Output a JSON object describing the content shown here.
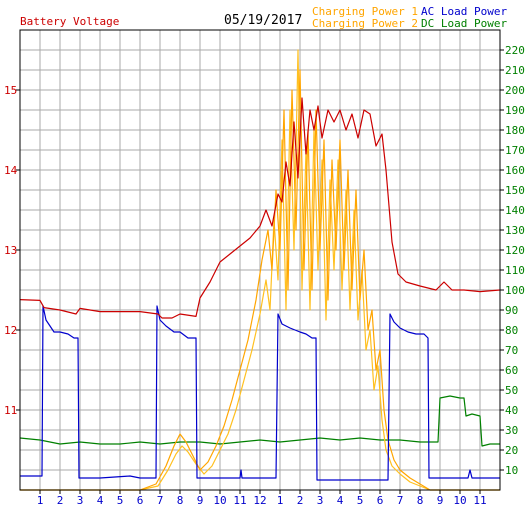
{
  "header": {
    "left_label": "Battery Voltage",
    "date": "05/19/2017",
    "legend": [
      {
        "label": "Charging Power 1",
        "color": "#ffa500"
      },
      {
        "label": "AC Load Power",
        "color": "#0000cc"
      },
      {
        "label": "Charging Power 2",
        "color": "#ffa500"
      },
      {
        "label": "DC Load Power",
        "color": "#008000"
      }
    ]
  },
  "colors": {
    "voltage": "#cc0000",
    "charge1": "#ffa500",
    "charge2": "#ffc020",
    "ac": "#0000cc",
    "dc": "#008000",
    "grid": "#aaaaaa",
    "frame": "#000000"
  },
  "chart_data": {
    "type": "line",
    "x_unit": "hour of day (0-24)",
    "xlim": [
      0,
      24
    ],
    "x_ticks": [
      {
        "x": 1,
        "label": "1"
      },
      {
        "x": 2,
        "label": "2"
      },
      {
        "x": 3,
        "label": "3"
      },
      {
        "x": 4,
        "label": "4"
      },
      {
        "x": 5,
        "label": "5"
      },
      {
        "x": 6,
        "label": "6"
      },
      {
        "x": 7,
        "label": "7"
      },
      {
        "x": 8,
        "label": "8"
      },
      {
        "x": 9,
        "label": "9"
      },
      {
        "x": 10,
        "label": "10"
      },
      {
        "x": 11,
        "label": "11"
      },
      {
        "x": 12,
        "label": "12"
      },
      {
        "x": 13,
        "label": "1"
      },
      {
        "x": 14,
        "label": "2"
      },
      {
        "x": 15,
        "label": "3"
      },
      {
        "x": 16,
        "label": "4"
      },
      {
        "x": 17,
        "label": "5"
      },
      {
        "x": 18,
        "label": "6"
      },
      {
        "x": 19,
        "label": "7"
      },
      {
        "x": 20,
        "label": "8"
      },
      {
        "x": 21,
        "label": "9"
      },
      {
        "x": 22,
        "label": "10"
      },
      {
        "x": 23,
        "label": "11"
      }
    ],
    "y_left": {
      "ylim": [
        10,
        15.75
      ],
      "ticks": [
        11,
        12,
        13,
        14,
        15
      ]
    },
    "y_right": {
      "ylim": [
        0,
        230
      ],
      "ticks": [
        10,
        20,
        30,
        40,
        50,
        60,
        70,
        80,
        90,
        100,
        110,
        120,
        130,
        140,
        150,
        160,
        170,
        180,
        190,
        200,
        210,
        220
      ]
    },
    "series": [
      {
        "name": "Battery Voltage",
        "axis": "left",
        "color": "#cc0000",
        "points": [
          [
            0,
            12.38
          ],
          [
            1,
            12.37
          ],
          [
            1.2,
            12.28
          ],
          [
            2,
            12.25
          ],
          [
            2.8,
            12.2
          ],
          [
            3,
            12.27
          ],
          [
            4,
            12.23
          ],
          [
            6,
            12.23
          ],
          [
            6.9,
            12.2
          ],
          [
            7.1,
            12.15
          ],
          [
            7.6,
            12.15
          ],
          [
            8,
            12.2
          ],
          [
            8.8,
            12.17
          ],
          [
            9,
            12.4
          ],
          [
            9.5,
            12.6
          ],
          [
            10,
            12.85
          ],
          [
            10.5,
            12.95
          ],
          [
            11,
            13.05
          ],
          [
            11.5,
            13.15
          ],
          [
            12,
            13.3
          ],
          [
            12.3,
            13.5
          ],
          [
            12.6,
            13.3
          ],
          [
            12.9,
            13.7
          ],
          [
            13.1,
            13.6
          ],
          [
            13.3,
            14.1
          ],
          [
            13.5,
            13.8
          ],
          [
            13.7,
            14.6
          ],
          [
            13.9,
            13.9
          ],
          [
            14.1,
            14.9
          ],
          [
            14.3,
            14.2
          ],
          [
            14.5,
            14.75
          ],
          [
            14.7,
            14.5
          ],
          [
            14.9,
            14.8
          ],
          [
            15.1,
            14.4
          ],
          [
            15.4,
            14.75
          ],
          [
            15.7,
            14.6
          ],
          [
            16,
            14.75
          ],
          [
            16.3,
            14.5
          ],
          [
            16.6,
            14.7
          ],
          [
            16.9,
            14.4
          ],
          [
            17.2,
            14.75
          ],
          [
            17.5,
            14.7
          ],
          [
            17.8,
            14.3
          ],
          [
            18.1,
            14.45
          ],
          [
            18.3,
            14.0
          ],
          [
            18.6,
            13.1
          ],
          [
            18.9,
            12.7
          ],
          [
            19.3,
            12.6
          ],
          [
            20,
            12.55
          ],
          [
            20.8,
            12.5
          ],
          [
            21.2,
            12.6
          ],
          [
            21.6,
            12.5
          ],
          [
            22.2,
            12.5
          ],
          [
            23,
            12.48
          ],
          [
            24,
            12.5
          ]
        ]
      },
      {
        "name": "Charging Power 1",
        "axis": "right",
        "color": "#ffa500",
        "points": [
          [
            0,
            0
          ],
          [
            6,
            0
          ],
          [
            6.8,
            3
          ],
          [
            7.3,
            12
          ],
          [
            7.7,
            22
          ],
          [
            8,
            28
          ],
          [
            8.3,
            24
          ],
          [
            8.6,
            18
          ],
          [
            9,
            10
          ],
          [
            9.4,
            14
          ],
          [
            9.8,
            22
          ],
          [
            10.2,
            32
          ],
          [
            10.6,
            45
          ],
          [
            11,
            60
          ],
          [
            11.4,
            75
          ],
          [
            11.8,
            95
          ],
          [
            12.1,
            115
          ],
          [
            12.4,
            130
          ],
          [
            12.6,
            110
          ],
          [
            12.8,
            150
          ],
          [
            13,
            120
          ],
          [
            13.2,
            190
          ],
          [
            13.4,
            100
          ],
          [
            13.6,
            200
          ],
          [
            13.8,
            130
          ],
          [
            14,
            210
          ],
          [
            14.2,
            110
          ],
          [
            14.4,
            180
          ],
          [
            14.6,
            100
          ],
          [
            14.8,
            190
          ],
          [
            15,
            120
          ],
          [
            15.2,
            175
          ],
          [
            15.4,
            95
          ],
          [
            15.6,
            165
          ],
          [
            15.8,
            120
          ],
          [
            16,
            175
          ],
          [
            16.2,
            110
          ],
          [
            16.4,
            160
          ],
          [
            16.6,
            100
          ],
          [
            16.8,
            150
          ],
          [
            17,
            95
          ],
          [
            17.2,
            120
          ],
          [
            17.4,
            80
          ],
          [
            17.6,
            90
          ],
          [
            17.8,
            60
          ],
          [
            18,
            70
          ],
          [
            18.2,
            40
          ],
          [
            18.4,
            25
          ],
          [
            18.7,
            15
          ],
          [
            19,
            10
          ],
          [
            19.5,
            6
          ],
          [
            20,
            3
          ],
          [
            20.5,
            0
          ],
          [
            24,
            0
          ]
        ]
      },
      {
        "name": "Charging Power 2",
        "axis": "right",
        "color": "#ffc020",
        "points": [
          [
            0,
            0
          ],
          [
            6,
            0
          ],
          [
            6.9,
            2
          ],
          [
            7.4,
            10
          ],
          [
            7.8,
            18
          ],
          [
            8.1,
            22
          ],
          [
            8.4,
            19
          ],
          [
            8.8,
            13
          ],
          [
            9.2,
            8
          ],
          [
            9.6,
            12
          ],
          [
            10,
            20
          ],
          [
            10.4,
            28
          ],
          [
            10.8,
            40
          ],
          [
            11.2,
            55
          ],
          [
            11.6,
            70
          ],
          [
            12,
            88
          ],
          [
            12.3,
            105
          ],
          [
            12.5,
            90
          ],
          [
            12.7,
            135
          ],
          [
            12.9,
            105
          ],
          [
            13.1,
            175
          ],
          [
            13.3,
            90
          ],
          [
            13.5,
            190
          ],
          [
            13.7,
            120
          ],
          [
            13.9,
            220
          ],
          [
            14.1,
            100
          ],
          [
            14.3,
            170
          ],
          [
            14.5,
            90
          ],
          [
            14.7,
            180
          ],
          [
            14.9,
            110
          ],
          [
            15.1,
            165
          ],
          [
            15.3,
            85
          ],
          [
            15.5,
            155
          ],
          [
            15.7,
            110
          ],
          [
            15.9,
            165
          ],
          [
            16.1,
            100
          ],
          [
            16.3,
            150
          ],
          [
            16.5,
            90
          ],
          [
            16.7,
            140
          ],
          [
            16.9,
            85
          ],
          [
            17.1,
            110
          ],
          [
            17.3,
            70
          ],
          [
            17.5,
            80
          ],
          [
            17.7,
            50
          ],
          [
            17.9,
            62
          ],
          [
            18.1,
            35
          ],
          [
            18.3,
            20
          ],
          [
            18.6,
            12
          ],
          [
            19,
            8
          ],
          [
            19.5,
            4
          ],
          [
            20,
            2
          ],
          [
            20.5,
            0
          ],
          [
            24,
            0
          ]
        ]
      },
      {
        "name": "AC Load Power",
        "axis": "right",
        "color": "#0000cc",
        "points": [
          [
            0,
            7
          ],
          [
            1.1,
            7
          ],
          [
            1.15,
            92
          ],
          [
            1.3,
            85
          ],
          [
            1.5,
            82
          ],
          [
            1.7,
            79
          ],
          [
            2,
            79
          ],
          [
            2.4,
            78
          ],
          [
            2.7,
            76
          ],
          [
            2.9,
            76
          ],
          [
            2.95,
            6
          ],
          [
            4,
            6
          ],
          [
            5.5,
            7
          ],
          [
            6,
            6
          ],
          [
            6.8,
            6
          ],
          [
            6.85,
            92
          ],
          [
            7,
            85
          ],
          [
            7.3,
            82
          ],
          [
            7.7,
            79
          ],
          [
            8,
            79
          ],
          [
            8.4,
            76
          ],
          [
            8.8,
            76
          ],
          [
            8.85,
            6
          ],
          [
            10,
            6
          ],
          [
            11,
            6
          ],
          [
            11.05,
            10
          ],
          [
            11.1,
            6
          ],
          [
            12.8,
            6
          ],
          [
            12.9,
            88
          ],
          [
            13.1,
            83
          ],
          [
            13.5,
            81
          ],
          [
            14,
            79
          ],
          [
            14.3,
            78
          ],
          [
            14.6,
            76
          ],
          [
            14.8,
            76
          ],
          [
            14.85,
            5
          ],
          [
            16,
            5
          ],
          [
            17,
            5
          ],
          [
            18.4,
            5
          ],
          [
            18.5,
            88
          ],
          [
            18.7,
            84
          ],
          [
            19,
            81
          ],
          [
            19.4,
            79
          ],
          [
            19.8,
            78
          ],
          [
            20.2,
            78
          ],
          [
            20.4,
            76
          ],
          [
            20.45,
            6
          ],
          [
            22.4,
            6
          ],
          [
            22.5,
            10
          ],
          [
            22.6,
            6
          ],
          [
            24,
            6
          ]
        ]
      },
      {
        "name": "DC Load Power",
        "axis": "right",
        "color": "#008000",
        "points": [
          [
            0,
            26
          ],
          [
            1,
            25
          ],
          [
            2,
            23
          ],
          [
            3,
            24
          ],
          [
            4,
            23
          ],
          [
            5,
            23
          ],
          [
            6,
            24
          ],
          [
            7,
            23
          ],
          [
            8,
            24
          ],
          [
            9,
            24
          ],
          [
            10,
            23
          ],
          [
            11,
            24
          ],
          [
            12,
            25
          ],
          [
            13,
            24
          ],
          [
            14,
            25
          ],
          [
            15,
            26
          ],
          [
            16,
            25
          ],
          [
            17,
            26
          ],
          [
            18,
            25
          ],
          [
            19,
            25
          ],
          [
            20,
            24
          ],
          [
            20.9,
            24
          ],
          [
            21,
            46
          ],
          [
            21.5,
            47
          ],
          [
            22,
            46
          ],
          [
            22.2,
            46
          ],
          [
            22.3,
            37
          ],
          [
            22.6,
            38
          ],
          [
            23,
            37
          ],
          [
            23.1,
            22
          ],
          [
            23.5,
            23
          ],
          [
            24,
            23
          ]
        ]
      }
    ]
  }
}
